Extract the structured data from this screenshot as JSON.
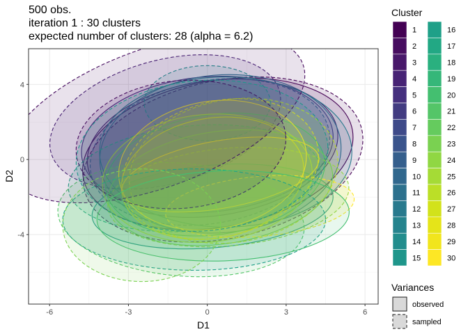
{
  "title": {
    "line1": "500 obs.",
    "line2": "iteration 1 : 30 clusters",
    "line3": "expected number of clusters: 28 (alpha = 6.2)"
  },
  "chart_data": {
    "type": "scatter",
    "subtype": "ellipses",
    "xlabel": "D1",
    "ylabel": "D2",
    "xlim": [
      -6.8,
      6.5
    ],
    "ylim": [
      -7.7,
      5.9
    ],
    "x_ticks": [
      -6,
      -3,
      0,
      3,
      6
    ],
    "x_tick_labels": [
      "-6",
      "-3",
      "0",
      "3",
      "6"
    ],
    "y_ticks": [
      -4,
      0,
      4
    ],
    "y_tick_labels": [
      "-4",
      "0",
      "4"
    ],
    "grid": true,
    "legend": {
      "cluster_title": "Cluster",
      "clusters": [
        "1",
        "2",
        "3",
        "4",
        "5",
        "6",
        "7",
        "8",
        "9",
        "10",
        "11",
        "12",
        "13",
        "14",
        "15",
        "16",
        "17",
        "18",
        "19",
        "20",
        "21",
        "22",
        "23",
        "24",
        "25",
        "26",
        "27",
        "28",
        "29",
        "30"
      ],
      "variance_title": "Variances",
      "variance_items": [
        "observed",
        "sampled"
      ],
      "placement": "right"
    },
    "palette": [
      "#440154",
      "#470D60",
      "#48186A",
      "#472375",
      "#45307E",
      "#423C81",
      "#3E4A89",
      "#3A548C",
      "#355F8D",
      "#31688E",
      "#2D718E",
      "#297A8E",
      "#25848E",
      "#228D8D",
      "#1F968B",
      "#1FA088",
      "#22A884",
      "#2AB07F",
      "#35B779",
      "#44BF70",
      "#54C568",
      "#65CB5E",
      "#7AD151",
      "#90D743",
      "#A5DB36",
      "#BBDF27",
      "#D2E21B",
      "#E5E419",
      "#F1E51D",
      "#FDE725"
    ],
    "ellipses": [
      {
        "cluster": 1,
        "variance": "observed",
        "cx": 0.4,
        "cy": 0.3,
        "rx": 5.2,
        "ry": 3.9,
        "angle": -10
      },
      {
        "cluster": 1,
        "variance": "sampled",
        "cx": 0.6,
        "cy": 0.0,
        "rx": 5.4,
        "ry": 4.2,
        "angle": -12
      },
      {
        "cluster": 3,
        "variance": "observed",
        "cx": 0.2,
        "cy": 0.6,
        "rx": 4.8,
        "ry": 3.6,
        "angle": -8
      },
      {
        "cluster": 4,
        "variance": "sampled",
        "cx": -1.6,
        "cy": 2.0,
        "rx": 4.5,
        "ry": 3.3,
        "angle": -15
      },
      {
        "cluster": 5,
        "variance": "observed",
        "cx": 0.0,
        "cy": 0.8,
        "rx": 4.8,
        "ry": 3.6,
        "angle": -5
      },
      {
        "cluster": 8,
        "variance": "sampled",
        "cx": 0.1,
        "cy": 0.4,
        "rx": 4.6,
        "ry": 3.8,
        "angle": -10
      },
      {
        "cluster": 10,
        "variance": "observed",
        "cx": 0.5,
        "cy": 0.3,
        "rx": 4.6,
        "ry": 4.2,
        "angle": -5
      },
      {
        "cluster": 12,
        "variance": "observed",
        "cx": 0.7,
        "cy": 0.4,
        "rx": 4.8,
        "ry": 4.0,
        "angle": 0
      },
      {
        "cluster": 14,
        "variance": "sampled",
        "cx": 0.0,
        "cy": 3.0,
        "rx": 2.4,
        "ry": 2.0,
        "angle": 0
      },
      {
        "cluster": 15,
        "variance": "observed",
        "cx": 0.2,
        "cy": -2.5,
        "rx": 4.6,
        "ry": 2.2,
        "angle": -5
      },
      {
        "cluster": 17,
        "variance": "sampled",
        "cx": -0.5,
        "cy": -1.0,
        "rx": 4.8,
        "ry": 2.8,
        "angle": -5
      },
      {
        "cluster": 19,
        "variance": "observed",
        "cx": 0.3,
        "cy": -0.8,
        "rx": 4.2,
        "ry": 3.2,
        "angle": -8
      },
      {
        "cluster": 21,
        "variance": "sampled",
        "cx": -1.0,
        "cy": -3.2,
        "rx": 4.7,
        "ry": 3.0,
        "angle": 5
      },
      {
        "cluster": 22,
        "variance": "observed",
        "cx": 0.5,
        "cy": -1.5,
        "rx": 4.3,
        "ry": 3.0,
        "angle": -8
      },
      {
        "cluster": 24,
        "variance": "sampled",
        "cx": 0.8,
        "cy": -2.0,
        "rx": 4.6,
        "ry": 2.6,
        "angle": -5
      },
      {
        "cluster": 25,
        "variance": "observed",
        "cx": 0.0,
        "cy": -1.0,
        "rx": 4.0,
        "ry": 3.4,
        "angle": -5
      },
      {
        "cluster": 26,
        "variance": "sampled",
        "cx": 1.0,
        "cy": -0.6,
        "rx": 4.0,
        "ry": 3.8,
        "angle": -10
      },
      {
        "cluster": 27,
        "variance": "observed",
        "cx": 0.2,
        "cy": -1.0,
        "rx": 3.5,
        "ry": 3.2,
        "angle": -10
      },
      {
        "cluster": 28,
        "variance": "sampled",
        "cx": 0.5,
        "cy": -0.5,
        "rx": 3.8,
        "ry": 3.6,
        "angle": -15
      },
      {
        "cluster": 29,
        "variance": "observed",
        "cx": 0.5,
        "cy": -0.8,
        "rx": 3.8,
        "ry": 1.8,
        "angle": -10
      },
      {
        "cluster": 30,
        "variance": "sampled",
        "cx": 2.0,
        "cy": -2.5,
        "rx": 3.6,
        "ry": 1.6,
        "angle": -5
      },
      {
        "cluster": 30,
        "variance": "observed",
        "cx": 0.2,
        "cy": -0.3,
        "rx": 3.6,
        "ry": 3.4,
        "angle": -10
      },
      {
        "cluster": 2,
        "variance": "sampled",
        "cx": -1.0,
        "cy": 0.8,
        "rx": 4.0,
        "ry": 3.4,
        "angle": -5
      },
      {
        "cluster": 2,
        "variance": "sampled",
        "cx": -2.0,
        "cy": 2.2,
        "rx": 6.0,
        "ry": 3.7,
        "angle": -20
      },
      {
        "cluster": 15,
        "variance": "sampled",
        "cx": -0.2,
        "cy": 0.2,
        "rx": 4.8,
        "ry": 4.0,
        "angle": -5
      },
      {
        "cluster": 16,
        "variance": "sampled",
        "cx": -0.5,
        "cy": -3.2,
        "rx": 5.0,
        "ry": 2.7,
        "angle": 0
      },
      {
        "cluster": 20,
        "variance": "observed",
        "cx": 0.6,
        "cy": -3.0,
        "rx": 4.8,
        "ry": 2.4,
        "angle": -2
      },
      {
        "cluster": 23,
        "variance": "sampled",
        "cx": -2.5,
        "cy": -3.5,
        "rx": 3.0,
        "ry": 3.0,
        "angle": 0
      }
    ]
  }
}
